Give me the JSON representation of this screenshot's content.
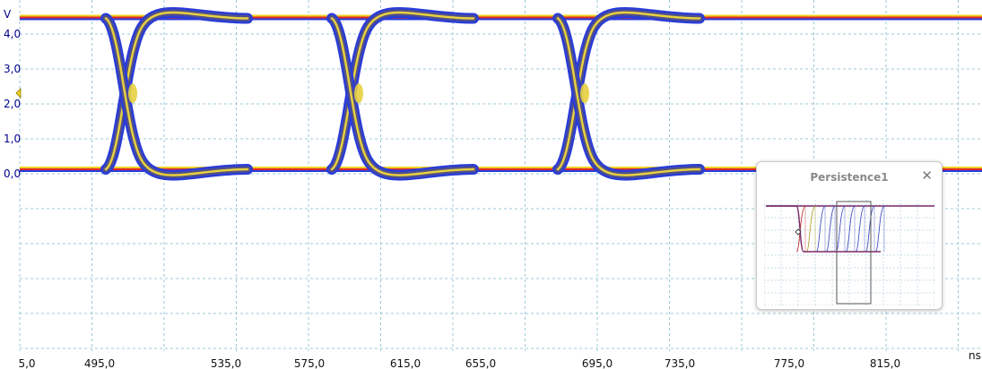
{
  "chart_data": {
    "type": "line",
    "title": "",
    "xlabel": "ns",
    "ylabel": "V",
    "x_ticks": [
      "5,0",
      "495,0",
      "535,0",
      "575,0",
      "615,0",
      "655,0",
      "695,0",
      "735,0",
      "775,0",
      "815,0"
    ],
    "y_ticks": [
      "4,0",
      "3,0",
      "2,0",
      "1,0",
      "0,0"
    ],
    "ylim": [
      0.0,
      4.5
    ],
    "high_level_v": 4.5,
    "low_level_v": 0.05,
    "crossing_level_v": 2.3,
    "crossing_times_ns": [
      500,
      626,
      752
    ],
    "grid": true,
    "display": "persistence eye diagram"
  },
  "persistence_window": {
    "title": "Persistence1",
    "close_icon": "close-icon"
  },
  "colors": {
    "trace_core": "#e8d040",
    "trace_mid": "#505088",
    "trace_edge": "#2a3cd8",
    "rail_red": "#e02a2a",
    "rail_yellow": "#f0d020",
    "grid": "#9cc8d8",
    "axis_text": "#00008b"
  }
}
